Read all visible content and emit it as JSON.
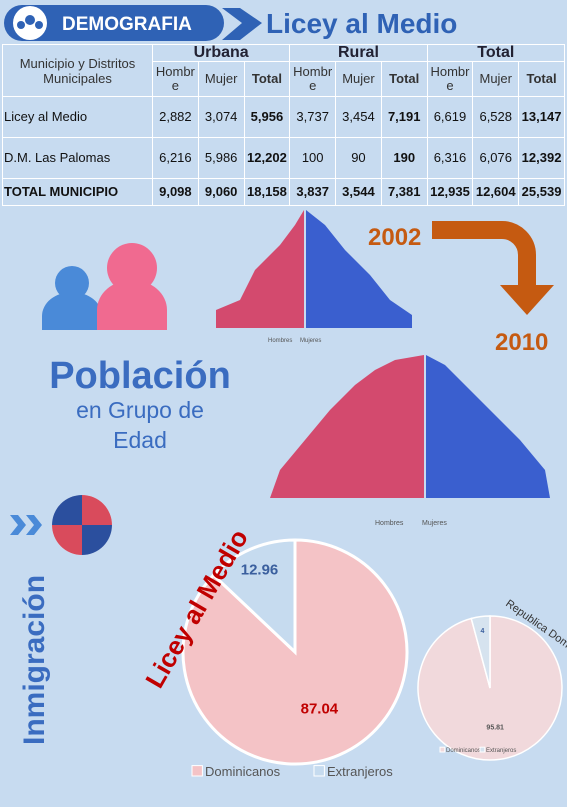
{
  "header": {
    "badge": "DEMOGRAFIA",
    "title": "Licey al Medio"
  },
  "table": {
    "corner": "Municipio y Distritos Municipales",
    "groups": [
      "Urbana",
      "Rural",
      "Total"
    ],
    "subheaders": [
      "Hombre",
      "Mujer",
      "Total",
      "Hombre",
      "Mujer",
      "Total",
      "Hombre",
      "Mujer",
      "Total"
    ],
    "rows": [
      [
        "Licey al Medio",
        "2,882",
        "3,074",
        "5,956",
        "3,737",
        "3,454",
        "7,191",
        "6,619",
        "6,528",
        "13,147"
      ],
      [
        "D.M. Las Palomas",
        "6,216",
        "5,986",
        "12,202",
        "100",
        "90",
        "190",
        "6,316",
        "6,076",
        "12,392"
      ],
      [
        "TOTAL MUNICIPIO",
        "9,098",
        "9,060",
        "18,158",
        "3,837",
        "3,544",
        "7,381",
        "12,935",
        "12,604",
        "25,539"
      ]
    ]
  },
  "pyramids": {
    "years": [
      "2002",
      "2010"
    ],
    "legend": [
      "Hombres",
      "Mujeres"
    ]
  },
  "section": {
    "title": "Población",
    "subtitle": "en Grupo de Edad",
    "immigration": "Inmigración"
  },
  "pies": [
    {
      "type": "pie",
      "title": "Licey al Medio",
      "categories": [
        "Dominicanos",
        "Extranjeros"
      ],
      "values": [
        87.04,
        12.96
      ],
      "colors": [
        "#f4c3c6",
        "#c6dbef"
      ]
    },
    {
      "type": "pie",
      "title": "Republica Dominicana",
      "categories": [
        "Dominicanos",
        "Extranjeros"
      ],
      "values": [
        95.81,
        4.19
      ],
      "value_labels": [
        "95.81",
        "4"
      ],
      "colors": [
        "#f1d9dc",
        "#d6e3ef"
      ]
    }
  ]
}
